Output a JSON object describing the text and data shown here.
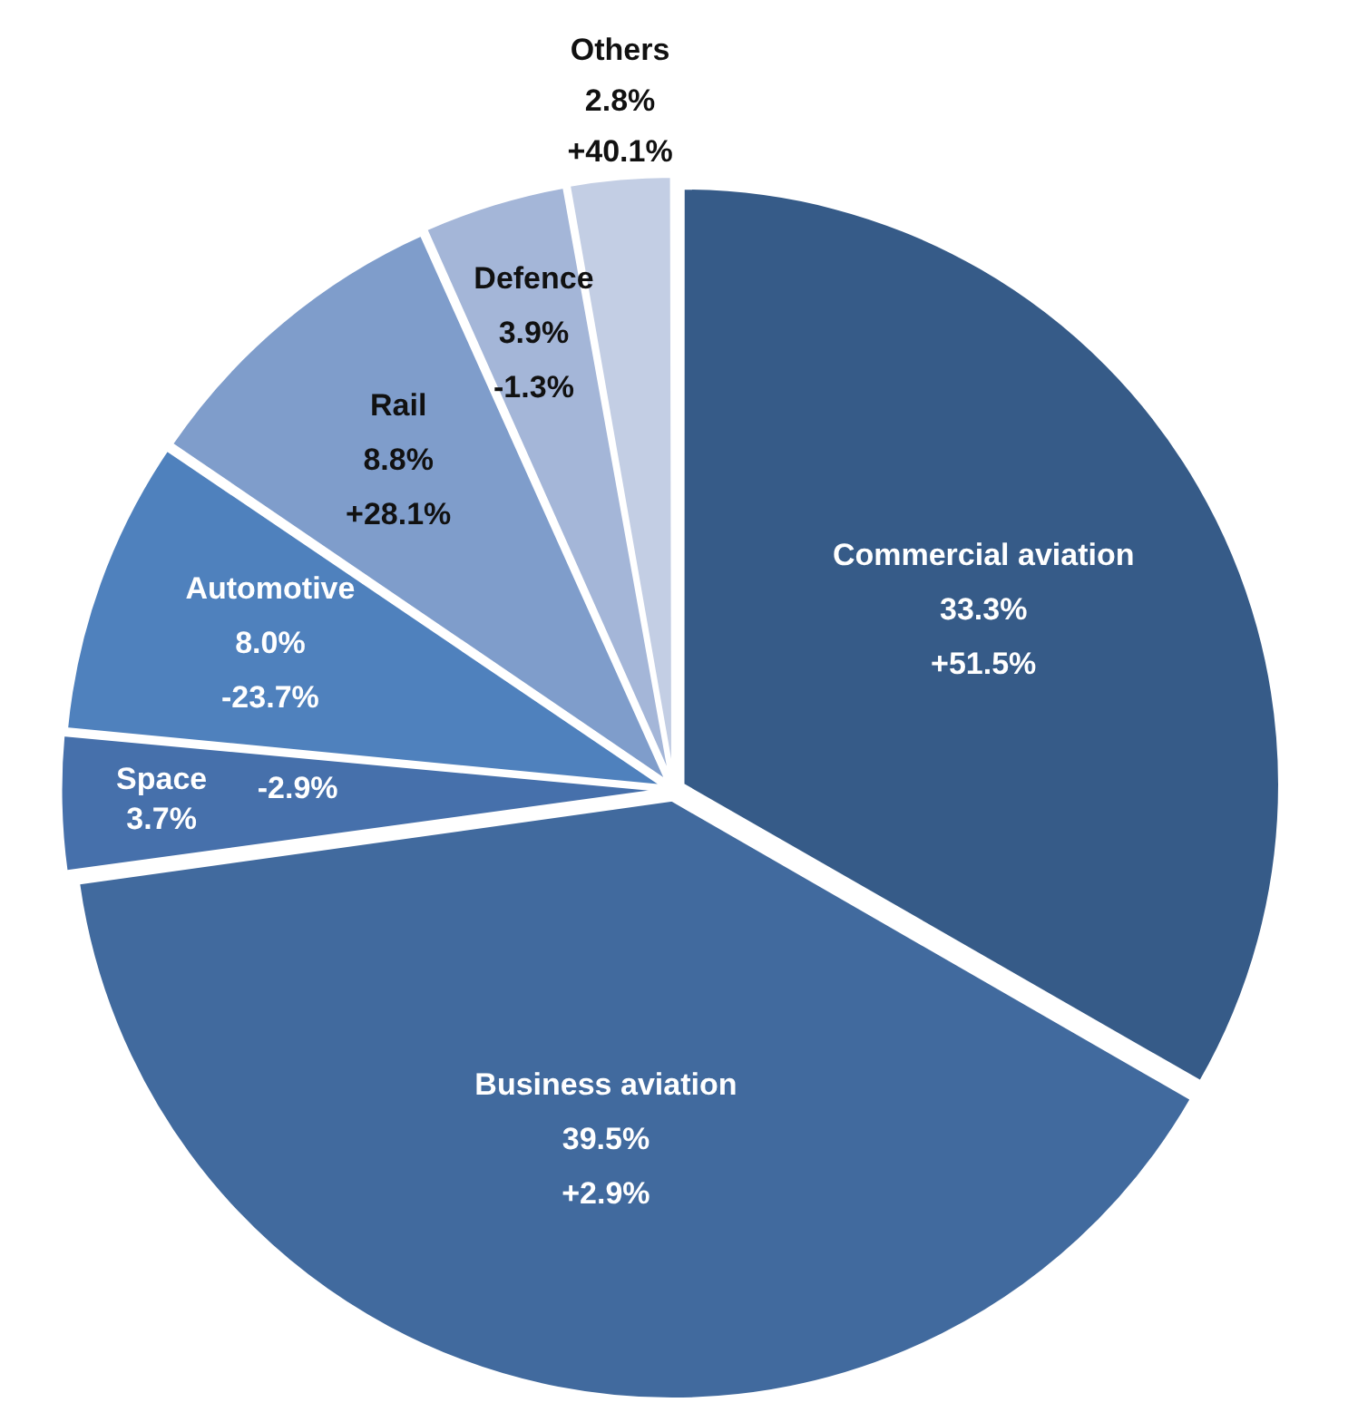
{
  "chart_data": {
    "type": "pie",
    "categories": [
      "Commercial aviation",
      "Business aviation",
      "Space",
      "Automotive",
      "Rail",
      "Defence",
      "Others"
    ],
    "values": [
      33.3,
      39.5,
      3.7,
      8.0,
      8.8,
      3.9,
      2.8
    ],
    "colors": [
      "#365b88",
      "#416a9e",
      "#4670ab",
      "#4f81bd",
      "#7f9dcb",
      "#a4b6d8",
      "#c3cee4"
    ],
    "value_labels": [
      "33.3%",
      "39.5%",
      "3.7%",
      "8.0%",
      "8.8%",
      "3.9%",
      "2.8%"
    ],
    "annotations": [
      {
        "text": "+51.5%",
        "x": "Commercial aviation"
      },
      {
        "text": "+2.9%",
        "x": "Business aviation"
      },
      {
        "text": "-2.9%",
        "x": "Space"
      },
      {
        "text": "-23.7%",
        "x": "Automotive"
      },
      {
        "text": "+28.1%",
        "x": "Rail"
      },
      {
        "text": "-1.3%",
        "x": "Defence"
      },
      {
        "text": "+40.1%",
        "x": "Others"
      }
    ],
    "legend": false
  }
}
